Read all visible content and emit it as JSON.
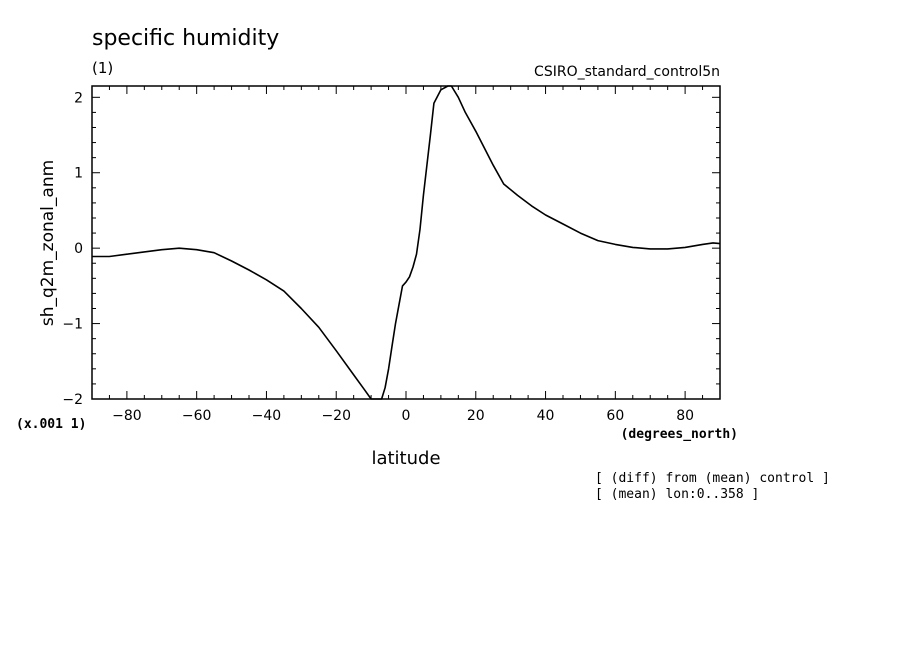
{
  "chart_data": {
    "type": "line",
    "title": "specific humidity",
    "subtitle": "(1)",
    "run_label": "CSIRO_standard_control5n",
    "xlabel": "latitude",
    "xunits": "(degrees_north)",
    "ylabel": "sh_q2m_zonal_anm",
    "yscale_label": "(x.001 1)",
    "xlim": [
      -90,
      90
    ],
    "ylim": [
      -2,
      2.15
    ],
    "xticks": [
      -80,
      -60,
      -40,
      -20,
      0,
      20,
      40,
      60,
      80
    ],
    "xtick_labels": [
      "−80",
      "−60",
      "−40",
      "−20",
      "0",
      "20",
      "40",
      "60",
      "80"
    ],
    "yticks": [
      -2,
      -1,
      0,
      1,
      2
    ],
    "ytick_labels": [
      "−2",
      "−1",
      "0",
      "1",
      "2"
    ],
    "notes": [
      "[ (diff) from (mean) control ]",
      "[ (mean) lon:0..358 ]"
    ],
    "grid": false,
    "color": "#000000",
    "series": [
      {
        "x": [
          -90,
          -85,
          -80,
          -75,
          -70,
          -65,
          -60,
          -55,
          -50,
          -45,
          -40,
          -35,
          -30,
          -25,
          -20,
          -15,
          -12,
          -10,
          -8,
          -7,
          -6,
          -5,
          -4,
          -3,
          -2,
          -1,
          0,
          1,
          2,
          3,
          4,
          5,
          6,
          7,
          8,
          10,
          12,
          13,
          15,
          17,
          20,
          25,
          28,
          32,
          36,
          40,
          45,
          50,
          55,
          60,
          65,
          70,
          75,
          80,
          85,
          88,
          90
        ],
        "y": [
          -0.11,
          -0.11,
          -0.08,
          -0.05,
          -0.02,
          0.0,
          -0.02,
          -0.06,
          -0.17,
          -0.29,
          -0.42,
          -0.57,
          -0.8,
          -1.05,
          -1.36,
          -1.68,
          -1.87,
          -2.0,
          -2.0,
          -2.0,
          -1.85,
          -1.6,
          -1.3,
          -1.0,
          -0.75,
          -0.5,
          -0.45,
          -0.38,
          -0.25,
          -0.08,
          0.25,
          0.7,
          1.1,
          1.5,
          1.92,
          2.1,
          2.15,
          2.15,
          2.0,
          1.8,
          1.55,
          1.1,
          0.85,
          0.7,
          0.56,
          0.44,
          0.32,
          0.2,
          0.1,
          0.05,
          0.01,
          -0.01,
          -0.01,
          0.01,
          0.05,
          0.07,
          0.06
        ]
      }
    ]
  }
}
